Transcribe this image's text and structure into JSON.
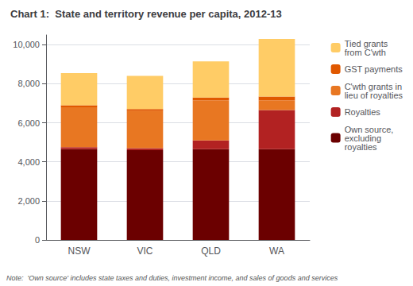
{
  "chart_data": {
    "type": "bar",
    "title": "Chart 1:  State and territory revenue per capita, 2012-13",
    "categories": [
      "NSW",
      "VIC",
      "QLD",
      "WA"
    ],
    "series": [
      {
        "name": "Own source,\nexcluding\nroyalties",
        "color": "#6B0000",
        "values": [
          4650,
          4600,
          4650,
          4650
        ]
      },
      {
        "name": "Royalties",
        "color": "#B22222",
        "values": [
          100,
          100,
          450,
          2000
        ]
      },
      {
        "name": "C'wth grants in\nlieu of royalties",
        "color": "#E87722",
        "values": [
          2050,
          1900,
          2050,
          500
        ]
      },
      {
        "name": "GST payments",
        "color": "#E05800",
        "values": [
          100,
          100,
          150,
          200
        ]
      },
      {
        "name": "Tied grants\nfrom C'wth",
        "color": "#FFCC66",
        "values": [
          1650,
          1700,
          1850,
          2950
        ]
      }
    ],
    "stacked": true,
    "ylim": [
      0,
      10500
    ],
    "yticks": [
      0,
      {
        "value": 2000,
        "label": "2,000"
      },
      {
        "value": 4000,
        "label": "4,000"
      },
      {
        "value": 6000,
        "label": "6,000"
      },
      {
        "value": 8000,
        "label": "8,000"
      },
      {
        "value": 10000,
        "label": "10,000"
      }
    ],
    "grid": true,
    "legend": "right",
    "annotation": "Note:  'Own source' includes state taxes and duties, investment income, and sales of goods and services"
  }
}
